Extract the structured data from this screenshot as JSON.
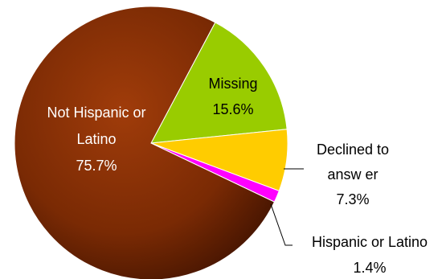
{
  "chart_data": {
    "type": "pie",
    "title": "",
    "start_angle_deg": 28,
    "direction": "clockwise",
    "slices": [
      {
        "name": "Missing",
        "value": 15.6,
        "label": "15.6%",
        "color": "#99cc00"
      },
      {
        "name": "Declined to answ er",
        "value": 7.3,
        "label": "7.3%",
        "color": "#ffcc00"
      },
      {
        "name": "Hispanic or Latino",
        "value": 1.4,
        "label": "1.4%",
        "color": "#ff00ff"
      },
      {
        "name": "Not Hispanic or Latino",
        "value": 75.7,
        "label": "75.7%",
        "color": "#993300"
      }
    ],
    "labels": {
      "missing": {
        "line1": "Missing",
        "line2": "15.6%"
      },
      "declined": {
        "line1": "Declined to",
        "line2": "answ er",
        "line3": "7.3%"
      },
      "hispanic": {
        "line1": "Hispanic or Latino",
        "line2": "1.4%"
      },
      "not_hispanic": {
        "line1": "Not Hispanic or",
        "line2": "Latino",
        "line3": "75.7%"
      }
    }
  }
}
